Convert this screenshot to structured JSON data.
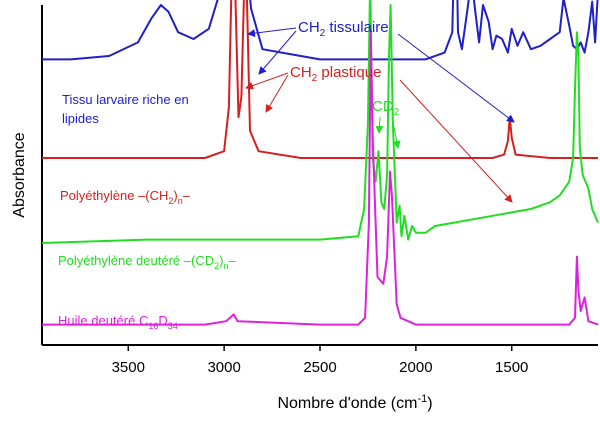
{
  "chart_data": {
    "type": "line",
    "title": "",
    "xlabel": "Nombre d'onde (cm",
    "xlabel_sup": "-1",
    "xlabel_end": ")",
    "ylabel": "Absorbance",
    "xlim": [
      3950,
      1050
    ],
    "x_reversed": true,
    "x_ticks": [
      3500,
      3000,
      2500,
      2000,
      1500
    ],
    "grid": false,
    "legend": "none",
    "series": [
      {
        "name": "Tissu larvaire riche en lipides",
        "color": "#2020c8",
        "offset": 0.84,
        "points": [
          [
            3950,
            0.0
          ],
          [
            3800,
            0.0
          ],
          [
            3600,
            0.01
          ],
          [
            3450,
            0.05
          ],
          [
            3380,
            0.12
          ],
          [
            3330,
            0.16
          ],
          [
            3290,
            0.14
          ],
          [
            3240,
            0.08
          ],
          [
            3160,
            0.06
          ],
          [
            3080,
            0.09
          ],
          [
            3010,
            0.22
          ],
          [
            2985,
            0.45
          ],
          [
            2965,
            0.82
          ],
          [
            2955,
            0.55
          ],
          [
            2940,
            0.26
          ],
          [
            2925,
            0.23
          ],
          [
            2905,
            0.3
          ],
          [
            2892,
            0.42
          ],
          [
            2880,
            0.28
          ],
          [
            2860,
            0.15
          ],
          [
            2800,
            0.03
          ],
          [
            2700,
            0.02
          ],
          [
            2500,
            0.0
          ],
          [
            2300,
            0.0
          ],
          [
            2100,
            0.0
          ],
          [
            1950,
            0.0
          ],
          [
            1850,
            0.02
          ],
          [
            1810,
            0.08
          ],
          [
            1800,
            0.32
          ],
          [
            1790,
            0.4
          ],
          [
            1780,
            0.08
          ],
          [
            1760,
            0.03
          ],
          [
            1730,
            0.15
          ],
          [
            1710,
            0.24
          ],
          [
            1690,
            0.14
          ],
          [
            1670,
            0.05
          ],
          [
            1650,
            0.16
          ],
          [
            1620,
            0.11
          ],
          [
            1600,
            0.03
          ],
          [
            1580,
            0.07
          ],
          [
            1550,
            0.06
          ],
          [
            1520,
            0.02
          ],
          [
            1500,
            0.09
          ],
          [
            1470,
            0.04
          ],
          [
            1440,
            0.08
          ],
          [
            1400,
            0.03
          ],
          [
            1350,
            0.04
          ],
          [
            1300,
            0.06
          ],
          [
            1250,
            0.08
          ],
          [
            1230,
            0.18
          ],
          [
            1200,
            0.1
          ],
          [
            1180,
            0.04
          ],
          [
            1160,
            0.03
          ],
          [
            1140,
            0.05
          ],
          [
            1120,
            0.02
          ],
          [
            1100,
            0.08
          ],
          [
            1080,
            0.17
          ],
          [
            1065,
            0.05
          ],
          [
            1050,
            0.2
          ]
        ]
      },
      {
        "name": "Polyéthylène –(CH₂)ₙ–",
        "color": "#d42020",
        "offset": 0.55,
        "points": [
          [
            3950,
            0.0
          ],
          [
            3300,
            0.0
          ],
          [
            3100,
            0.0
          ],
          [
            3000,
            0.02
          ],
          [
            2975,
            0.15
          ],
          [
            2960,
            0.55
          ],
          [
            2950,
            0.75
          ],
          [
            2940,
            0.45
          ],
          [
            2925,
            0.12
          ],
          [
            2910,
            0.18
          ],
          [
            2890,
            0.62
          ],
          [
            2880,
            0.45
          ],
          [
            2865,
            0.08
          ],
          [
            2820,
            0.02
          ],
          [
            2600,
            0.0
          ],
          [
            2000,
            0.0
          ],
          [
            1600,
            0.0
          ],
          [
            1540,
            0.01
          ],
          [
            1520,
            0.05
          ],
          [
            1510,
            0.12
          ],
          [
            1500,
            0.06
          ],
          [
            1480,
            0.01
          ],
          [
            1300,
            0.0
          ],
          [
            1050,
            0.0
          ]
        ]
      },
      {
        "name": "Polyéthylène deutéré –(CD₂)ₙ–",
        "color": "#22dd22",
        "offset": 0.3,
        "points": [
          [
            3950,
            0.0
          ],
          [
            3400,
            0.01
          ],
          [
            3000,
            0.01
          ],
          [
            2900,
            0.01
          ],
          [
            2700,
            0.01
          ],
          [
            2500,
            0.01
          ],
          [
            2300,
            0.02
          ],
          [
            2270,
            0.1
          ],
          [
            2250,
            0.35
          ],
          [
            2238,
            0.78
          ],
          [
            2225,
            0.25
          ],
          [
            2210,
            0.18
          ],
          [
            2195,
            0.27
          ],
          [
            2180,
            0.12
          ],
          [
            2165,
            0.1
          ],
          [
            2150,
            0.2
          ],
          [
            2140,
            0.55
          ],
          [
            2132,
            0.7
          ],
          [
            2120,
            0.35
          ],
          [
            2100,
            0.06
          ],
          [
            2085,
            0.11
          ],
          [
            2075,
            0.02
          ],
          [
            2060,
            0.08
          ],
          [
            2040,
            0.01
          ],
          [
            2020,
            0.05
          ],
          [
            2000,
            0.03
          ],
          [
            1950,
            0.03
          ],
          [
            1900,
            0.05
          ],
          [
            1800,
            0.06
          ],
          [
            1700,
            0.07
          ],
          [
            1600,
            0.08
          ],
          [
            1500,
            0.09
          ],
          [
            1400,
            0.1
          ],
          [
            1300,
            0.12
          ],
          [
            1250,
            0.14
          ],
          [
            1200,
            0.18
          ],
          [
            1180,
            0.25
          ],
          [
            1170,
            0.45
          ],
          [
            1160,
            0.62
          ],
          [
            1152,
            0.55
          ],
          [
            1145,
            0.28
          ],
          [
            1130,
            0.2
          ],
          [
            1100,
            0.16
          ],
          [
            1080,
            0.1
          ],
          [
            1050,
            0.06
          ]
        ]
      },
      {
        "name": "Huile deutéré C₁₆D₃₄",
        "color": "#dd22dd",
        "offset": 0.06,
        "points": [
          [
            3950,
            0.0
          ],
          [
            3500,
            0.0
          ],
          [
            3100,
            0.0
          ],
          [
            2990,
            0.01
          ],
          [
            2950,
            0.03
          ],
          [
            2930,
            0.01
          ],
          [
            2500,
            0.0
          ],
          [
            2300,
            0.0
          ],
          [
            2265,
            0.02
          ],
          [
            2245,
            0.3
          ],
          [
            2235,
            0.86
          ],
          [
            2225,
            0.55
          ],
          [
            2200,
            0.14
          ],
          [
            2170,
            0.12
          ],
          [
            2150,
            0.2
          ],
          [
            2135,
            0.45
          ],
          [
            2125,
            0.38
          ],
          [
            2100,
            0.06
          ],
          [
            2080,
            0.02
          ],
          [
            2000,
            0.0
          ],
          [
            1500,
            0.0
          ],
          [
            1200,
            0.0
          ],
          [
            1170,
            0.02
          ],
          [
            1160,
            0.2
          ],
          [
            1152,
            0.1
          ],
          [
            1140,
            0.04
          ],
          [
            1120,
            0.08
          ],
          [
            1100,
            0.01
          ],
          [
            1050,
            0.0
          ]
        ]
      }
    ]
  },
  "labels": {
    "tissu": "Tissu larvaire riche en lipides",
    "polyethylene": "Polyéthylène –(CH",
    "polyethylene_sub2": "2",
    "polyethylene_mid": ")",
    "polyethylene_subn": "n",
    "polyethylene_end": "–",
    "deutere": "Polyéthylène deutéré –(CD",
    "deutere_sub2": "2",
    "deutere_mid": ")",
    "deutere_subn": "n",
    "deutere_end": "–",
    "huile": "Huile deutéré C",
    "huile_sub1": "16",
    "huile_mid": "D",
    "huile_sub2": "34"
  },
  "annotations": {
    "ch2_tissulaire": "CH",
    "ch2_tissulaire_sub": "2",
    "ch2_tissulaire_end": " tissulaire",
    "ch2_plastique": "CH",
    "ch2_plastique_sub": "2",
    "ch2_plastique_end": " plastique",
    "cd2": "CD",
    "cd2_sub": "2"
  }
}
